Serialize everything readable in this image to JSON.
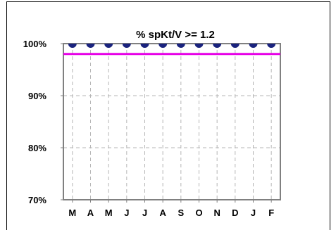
{
  "chart_data": {
    "type": "line",
    "title": "% spKt/V >= 1.2",
    "xlabel": "",
    "ylabel": "",
    "categories": [
      "M",
      "A",
      "M",
      "J",
      "J",
      "A",
      "S",
      "O",
      "N",
      "D",
      "J",
      "F"
    ],
    "series": [
      {
        "values": [
          100,
          100,
          100,
          100,
          100,
          100,
          100,
          100,
          100,
          100,
          100,
          100
        ],
        "color": "#1a237e",
        "marker": "circle"
      }
    ],
    "target_line": {
      "value": 98,
      "color": "#e600e6"
    },
    "ylim": [
      70,
      100
    ],
    "yticks": [
      {
        "value": 70,
        "label": "70%"
      },
      {
        "value": 80,
        "label": "80%"
      },
      {
        "value": 90,
        "label": "90%"
      },
      {
        "value": 100,
        "label": "100%"
      }
    ],
    "grid": true,
    "grid_style": "dashed",
    "legend": "none"
  }
}
